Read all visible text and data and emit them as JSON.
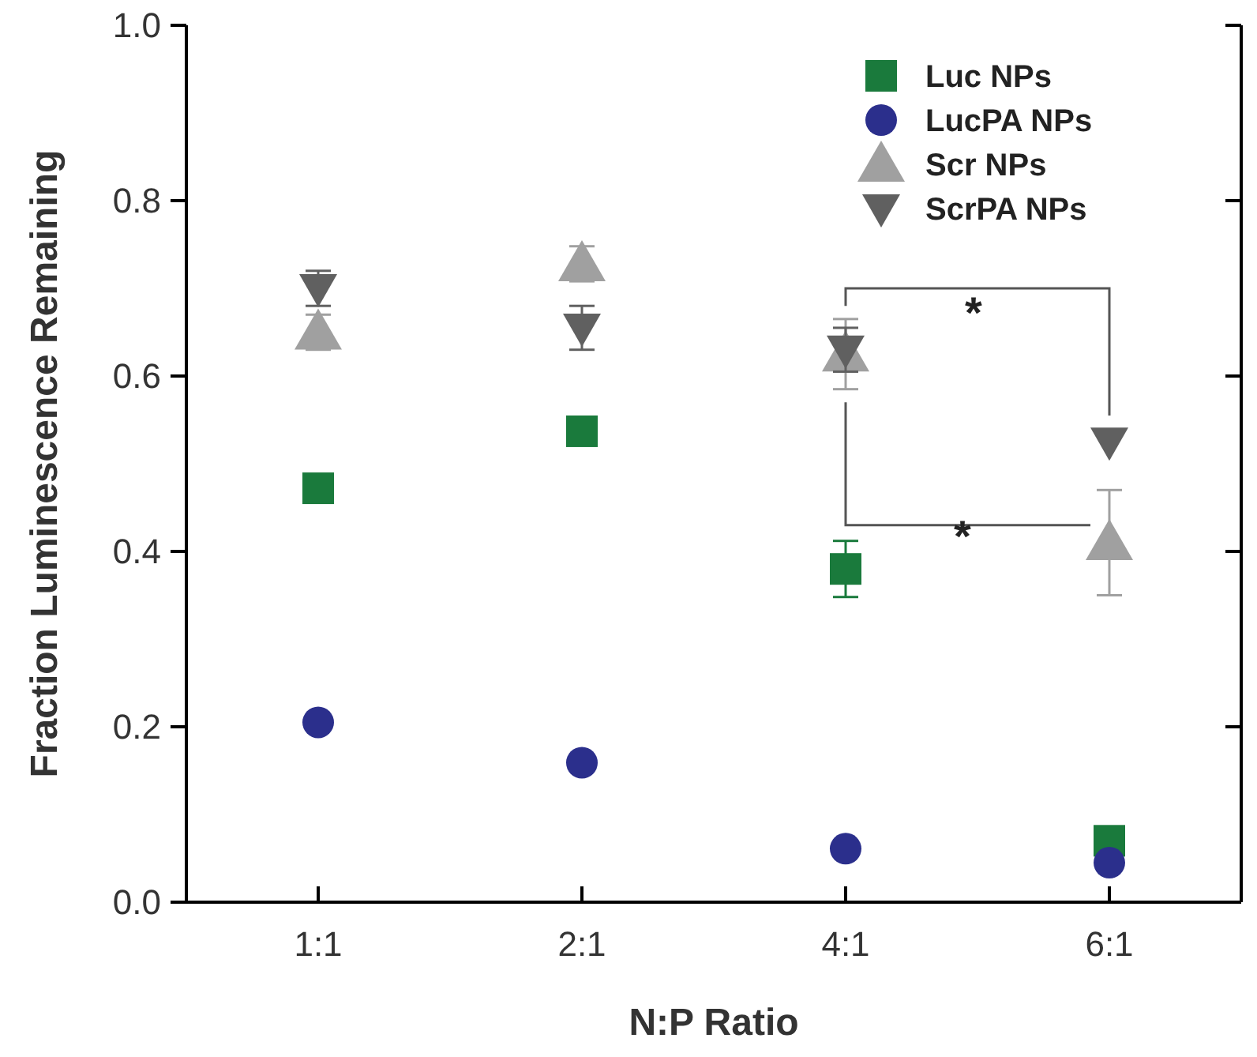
{
  "chart_data": {
    "type": "scatter",
    "xlabel": "N:P Ratio",
    "ylabel": "Fraction Luminescence Remaining",
    "categories": [
      "1:1",
      "2:1",
      "4:1",
      "6:1"
    ],
    "ylim": [
      0,
      1
    ],
    "yticks": [
      {
        "value": 0,
        "label": "0.0"
      },
      {
        "value": 0.2,
        "label": "0.2"
      },
      {
        "value": 0.4,
        "label": "0.4"
      },
      {
        "value": 0.6,
        "label": "0.6"
      },
      {
        "value": 0.8,
        "label": "0.8"
      },
      {
        "value": 1,
        "label": "1.0"
      }
    ],
    "legend": "top right",
    "grid": false,
    "series": [
      {
        "name": "Luc NPs",
        "color": "#1a7a3c",
        "marker": "square",
        "values": [
          0.472,
          0.537,
          0.38,
          0.07
        ],
        "errors": [
          null,
          0.015,
          0.032,
          null
        ]
      },
      {
        "name": "LucPA NPs",
        "color": "#2b2f8c",
        "marker": "circle",
        "values": [
          0.205,
          0.159,
          0.061,
          0.045
        ]
      },
      {
        "name": "Scr NPs",
        "color": "#a0a0a0",
        "marker": "triangle",
        "values": [
          0.65,
          0.728,
          0.625,
          0.41
        ],
        "errors": [
          0.02,
          0.02,
          0.04,
          0.06
        ]
      },
      {
        "name": "ScrPA NPs",
        "color": "#606060",
        "marker": "triangle-down",
        "values": [
          0.7,
          0.655,
          0.63,
          0.525
        ],
        "errors": [
          0.02,
          0.025,
          0.025,
          null
        ]
      }
    ],
    "annotations": [
      "*",
      "*"
    ]
  }
}
